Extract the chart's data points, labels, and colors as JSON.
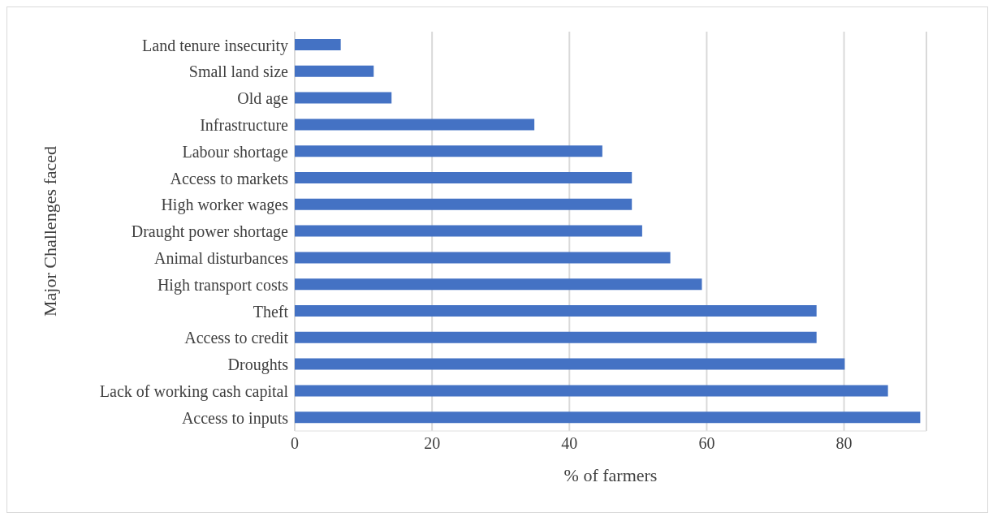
{
  "chart_data": {
    "type": "bar",
    "orientation": "horizontal",
    "xlabel": "% of farmers",
    "ylabel": "Major Challenges faced",
    "categories": [
      "Land tenure insecurity",
      "Small land size",
      "Old age",
      "Infrastructure",
      "Labour shortage",
      "Access to markets",
      "High worker wages",
      "Draught power shortage",
      "Animal disturbances",
      "High transport costs",
      "Theft",
      "Access to credit",
      "Droughts",
      "Lack of working cash capital",
      "Access to inputs"
    ],
    "values": [
      6.7,
      11.5,
      14.1,
      34.9,
      44.8,
      49.1,
      49.1,
      50.6,
      54.7,
      59.3,
      76.0,
      76.0,
      80.1,
      86.4,
      91.1
    ],
    "color": "#4472c4",
    "xlim": [
      0,
      92
    ],
    "xticks": [
      0,
      20,
      40,
      60,
      80
    ],
    "grid": "x"
  }
}
